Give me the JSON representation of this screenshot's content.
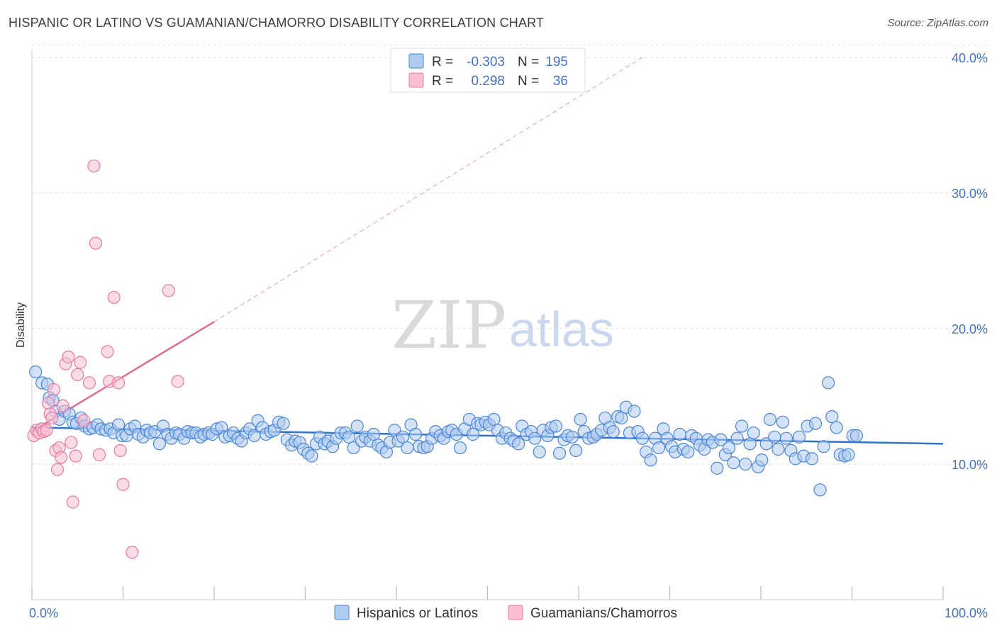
{
  "title": "HISPANIC OR LATINO VS GUAMANIAN/CHAMORRO DISABILITY CORRELATION CHART",
  "source": "Source: ZipAtlas.com",
  "watermark": {
    "part1": "ZIP",
    "part2": "atlas"
  },
  "legend": {
    "r_label": "R =",
    "n_label": "N =",
    "rows": [
      {
        "r": "-0.303",
        "n": "195"
      },
      {
        "r": "0.298",
        "n": "36"
      }
    ]
  },
  "bottom_legend": [
    "Hispanics or Latinos",
    "Guamanians/Chamorros"
  ],
  "colors": {
    "blue": "#4a86d8",
    "blue_fill": "#aecbf0",
    "blue_line": "#2f74cc",
    "pink": "#e87aa0",
    "pink_fill": "#f7bfd1",
    "pink_line": "#e06b96",
    "grid": "#dddddd",
    "axis_text": "#4472c4"
  },
  "chart_data": {
    "type": "scatter",
    "title": "HISPANIC OR LATINO VS GUAMANIAN/CHAMORRO DISABILITY CORRELATION CHART",
    "xlabel": "",
    "ylabel": "Disability",
    "xlim": [
      0,
      100
    ],
    "ylim": [
      0,
      41
    ],
    "x_ticks": [
      0,
      10,
      20,
      30,
      40,
      50,
      60,
      70,
      80,
      90,
      100
    ],
    "x_tick_labels": {
      "0": "0.0%",
      "100": "100.0%"
    },
    "y_ticks": [
      10,
      20,
      30,
      40
    ],
    "y_tick_labels": [
      "10.0%",
      "20.0%",
      "30.0%",
      "40.0%"
    ],
    "series": [
      {
        "name": "Hispanics or Latinos",
        "r": -0.303,
        "n": 195,
        "trend": {
          "x": [
            0,
            100
          ],
          "y": [
            12.7,
            11.5
          ],
          "dashed_extension": false
        },
        "points": [
          [
            0.4,
            16.8
          ],
          [
            1.1,
            16.0
          ],
          [
            1.7,
            15.9
          ],
          [
            1.9,
            14.9
          ],
          [
            2.3,
            14.7
          ],
          [
            2.6,
            13.9
          ],
          [
            3.0,
            13.3
          ],
          [
            3.6,
            13.9
          ],
          [
            4.1,
            13.7
          ],
          [
            4.5,
            13.1
          ],
          [
            4.9,
            13.0
          ],
          [
            5.4,
            13.4
          ],
          [
            5.8,
            12.8
          ],
          [
            6.3,
            12.6
          ],
          [
            6.7,
            12.7
          ],
          [
            7.2,
            12.9
          ],
          [
            7.6,
            12.6
          ],
          [
            8.1,
            12.5
          ],
          [
            8.6,
            12.6
          ],
          [
            9.0,
            12.3
          ],
          [
            9.5,
            12.9
          ],
          [
            9.9,
            12.1
          ],
          [
            10.4,
            12.1
          ],
          [
            10.8,
            12.6
          ],
          [
            11.3,
            12.8
          ],
          [
            11.7,
            12.2
          ],
          [
            12.2,
            12.0
          ],
          [
            12.6,
            12.5
          ],
          [
            13.0,
            12.3
          ],
          [
            13.5,
            12.4
          ],
          [
            14.0,
            11.5
          ],
          [
            14.4,
            12.8
          ],
          [
            14.9,
            12.2
          ],
          [
            15.3,
            11.9
          ],
          [
            15.8,
            12.3
          ],
          [
            16.2,
            12.2
          ],
          [
            16.7,
            11.9
          ],
          [
            17.1,
            12.4
          ],
          [
            17.6,
            12.3
          ],
          [
            18.0,
            12.3
          ],
          [
            18.5,
            12.0
          ],
          [
            18.9,
            12.2
          ],
          [
            19.4,
            12.3
          ],
          [
            19.8,
            12.2
          ],
          [
            20.3,
            12.6
          ],
          [
            20.8,
            12.7
          ],
          [
            21.2,
            12.0
          ],
          [
            21.7,
            12.1
          ],
          [
            22.1,
            12.3
          ],
          [
            22.6,
            11.9
          ],
          [
            23.0,
            11.7
          ],
          [
            23.5,
            12.3
          ],
          [
            23.9,
            12.6
          ],
          [
            24.4,
            12.1
          ],
          [
            24.8,
            13.2
          ],
          [
            25.3,
            12.7
          ],
          [
            25.7,
            12.2
          ],
          [
            26.2,
            12.4
          ],
          [
            26.6,
            12.5
          ],
          [
            27.1,
            13.1
          ],
          [
            27.6,
            13.0
          ],
          [
            28.0,
            11.8
          ],
          [
            28.5,
            11.4
          ],
          [
            28.9,
            11.7
          ],
          [
            29.4,
            11.6
          ],
          [
            29.8,
            11.1
          ],
          [
            30.3,
            10.8
          ],
          [
            30.7,
            10.6
          ],
          [
            31.2,
            11.5
          ],
          [
            31.6,
            12.0
          ],
          [
            32.1,
            11.5
          ],
          [
            32.5,
            11.7
          ],
          [
            33.0,
            11.3
          ],
          [
            33.4,
            11.9
          ],
          [
            33.9,
            12.3
          ],
          [
            34.4,
            12.3
          ],
          [
            34.8,
            12.0
          ],
          [
            35.3,
            11.2
          ],
          [
            35.7,
            12.8
          ],
          [
            36.2,
            11.7
          ],
          [
            36.6,
            12.0
          ],
          [
            37.1,
            11.7
          ],
          [
            37.5,
            12.2
          ],
          [
            38.0,
            11.4
          ],
          [
            38.4,
            11.2
          ],
          [
            38.9,
            10.9
          ],
          [
            39.3,
            11.6
          ],
          [
            39.8,
            12.5
          ],
          [
            40.2,
            11.7
          ],
          [
            40.7,
            12.0
          ],
          [
            41.2,
            11.2
          ],
          [
            41.6,
            12.9
          ],
          [
            42.1,
            12.2
          ],
          [
            42.5,
            11.3
          ],
          [
            43.0,
            11.2
          ],
          [
            43.4,
            11.3
          ],
          [
            43.9,
            11.9
          ],
          [
            44.3,
            12.4
          ],
          [
            44.8,
            12.1
          ],
          [
            45.2,
            11.9
          ],
          [
            45.7,
            12.4
          ],
          [
            46.1,
            12.5
          ],
          [
            46.6,
            12.2
          ],
          [
            47.0,
            11.2
          ],
          [
            47.5,
            12.6
          ],
          [
            48.0,
            13.3
          ],
          [
            48.4,
            12.2
          ],
          [
            48.9,
            13.0
          ],
          [
            49.3,
            12.9
          ],
          [
            49.8,
            13.1
          ],
          [
            50.2,
            12.9
          ],
          [
            50.7,
            13.3
          ],
          [
            51.1,
            12.5
          ],
          [
            51.6,
            11.9
          ],
          [
            52.0,
            12.3
          ],
          [
            52.5,
            11.9
          ],
          [
            52.9,
            11.7
          ],
          [
            53.4,
            11.5
          ],
          [
            53.8,
            12.8
          ],
          [
            54.3,
            12.2
          ],
          [
            54.8,
            12.4
          ],
          [
            55.2,
            11.9
          ],
          [
            55.7,
            10.9
          ],
          [
            56.1,
            12.5
          ],
          [
            56.6,
            12.1
          ],
          [
            57.0,
            12.7
          ],
          [
            57.5,
            12.8
          ],
          [
            57.9,
            10.8
          ],
          [
            58.4,
            11.8
          ],
          [
            58.8,
            12.1
          ],
          [
            59.3,
            12.0
          ],
          [
            59.7,
            11.0
          ],
          [
            60.2,
            13.3
          ],
          [
            60.6,
            12.4
          ],
          [
            61.1,
            11.9
          ],
          [
            61.6,
            12.0
          ],
          [
            62.0,
            12.2
          ],
          [
            62.5,
            12.5
          ],
          [
            62.9,
            13.4
          ],
          [
            63.4,
            12.7
          ],
          [
            63.8,
            12.4
          ],
          [
            64.3,
            13.5
          ],
          [
            64.7,
            13.4
          ],
          [
            65.2,
            14.2
          ],
          [
            65.6,
            12.3
          ],
          [
            66.1,
            13.9
          ],
          [
            66.5,
            12.4
          ],
          [
            67.0,
            11.9
          ],
          [
            67.4,
            10.9
          ],
          [
            67.9,
            10.3
          ],
          [
            68.4,
            11.9
          ],
          [
            68.8,
            11.2
          ],
          [
            69.3,
            12.6
          ],
          [
            69.7,
            11.9
          ],
          [
            70.2,
            11.3
          ],
          [
            70.6,
            10.9
          ],
          [
            71.1,
            12.2
          ],
          [
            71.5,
            11.1
          ],
          [
            72.0,
            10.9
          ],
          [
            72.4,
            12.1
          ],
          [
            72.9,
            11.9
          ],
          [
            73.3,
            11.4
          ],
          [
            73.8,
            11.1
          ],
          [
            74.2,
            11.8
          ],
          [
            74.7,
            11.6
          ],
          [
            75.2,
            9.7
          ],
          [
            75.6,
            11.8
          ],
          [
            76.1,
            10.7
          ],
          [
            76.5,
            11.2
          ],
          [
            77.0,
            10.1
          ],
          [
            77.4,
            11.9
          ],
          [
            77.9,
            12.8
          ],
          [
            78.3,
            10.0
          ],
          [
            78.8,
            11.5
          ],
          [
            79.2,
            12.3
          ],
          [
            79.7,
            9.8
          ],
          [
            80.1,
            10.3
          ],
          [
            80.6,
            11.5
          ],
          [
            81.0,
            13.3
          ],
          [
            81.5,
            12.0
          ],
          [
            81.9,
            11.1
          ],
          [
            82.4,
            13.1
          ],
          [
            82.8,
            11.9
          ],
          [
            83.3,
            11.0
          ],
          [
            83.8,
            10.4
          ],
          [
            84.2,
            12.0
          ],
          [
            84.7,
            10.6
          ],
          [
            85.1,
            12.8
          ],
          [
            85.6,
            10.4
          ],
          [
            86.0,
            13.0
          ],
          [
            86.5,
            8.1
          ],
          [
            86.9,
            11.3
          ],
          [
            87.4,
            16.0
          ],
          [
            87.8,
            13.5
          ],
          [
            88.3,
            12.7
          ],
          [
            88.7,
            10.7
          ],
          [
            89.2,
            10.6
          ],
          [
            89.6,
            10.7
          ],
          [
            90.1,
            12.1
          ],
          [
            90.5,
            12.1
          ]
        ]
      },
      {
        "name": "Guamanians/Chamorros",
        "r": 0.298,
        "n": 36,
        "trend": {
          "x": [
            0,
            20
          ],
          "y": [
            12.4,
            20.5
          ],
          "dashed_to": [
            67,
            40.0
          ]
        },
        "points": [
          [
            0.2,
            12.1
          ],
          [
            0.5,
            12.5
          ],
          [
            0.8,
            12.3
          ],
          [
            1.1,
            12.6
          ],
          [
            1.3,
            12.4
          ],
          [
            1.6,
            12.5
          ],
          [
            1.8,
            14.5
          ],
          [
            2.0,
            13.7
          ],
          [
            2.2,
            13.4
          ],
          [
            2.4,
            15.5
          ],
          [
            2.6,
            11.0
          ],
          [
            2.8,
            9.6
          ],
          [
            3.0,
            11.2
          ],
          [
            3.2,
            10.5
          ],
          [
            3.4,
            14.3
          ],
          [
            3.7,
            17.4
          ],
          [
            4.0,
            17.9
          ],
          [
            4.3,
            11.6
          ],
          [
            4.5,
            7.2
          ],
          [
            4.8,
            10.6
          ],
          [
            5.0,
            16.6
          ],
          [
            5.3,
            17.5
          ],
          [
            5.7,
            13.2
          ],
          [
            6.3,
            16.0
          ],
          [
            6.8,
            32.0
          ],
          [
            7.0,
            26.3
          ],
          [
            7.4,
            10.7
          ],
          [
            8.3,
            18.3
          ],
          [
            8.5,
            16.1
          ],
          [
            9.0,
            22.3
          ],
          [
            9.5,
            16.0
          ],
          [
            9.7,
            11.0
          ],
          [
            10.0,
            8.5
          ],
          [
            11.0,
            3.5
          ],
          [
            15.0,
            22.8
          ],
          [
            16.0,
            16.1
          ]
        ]
      }
    ]
  }
}
